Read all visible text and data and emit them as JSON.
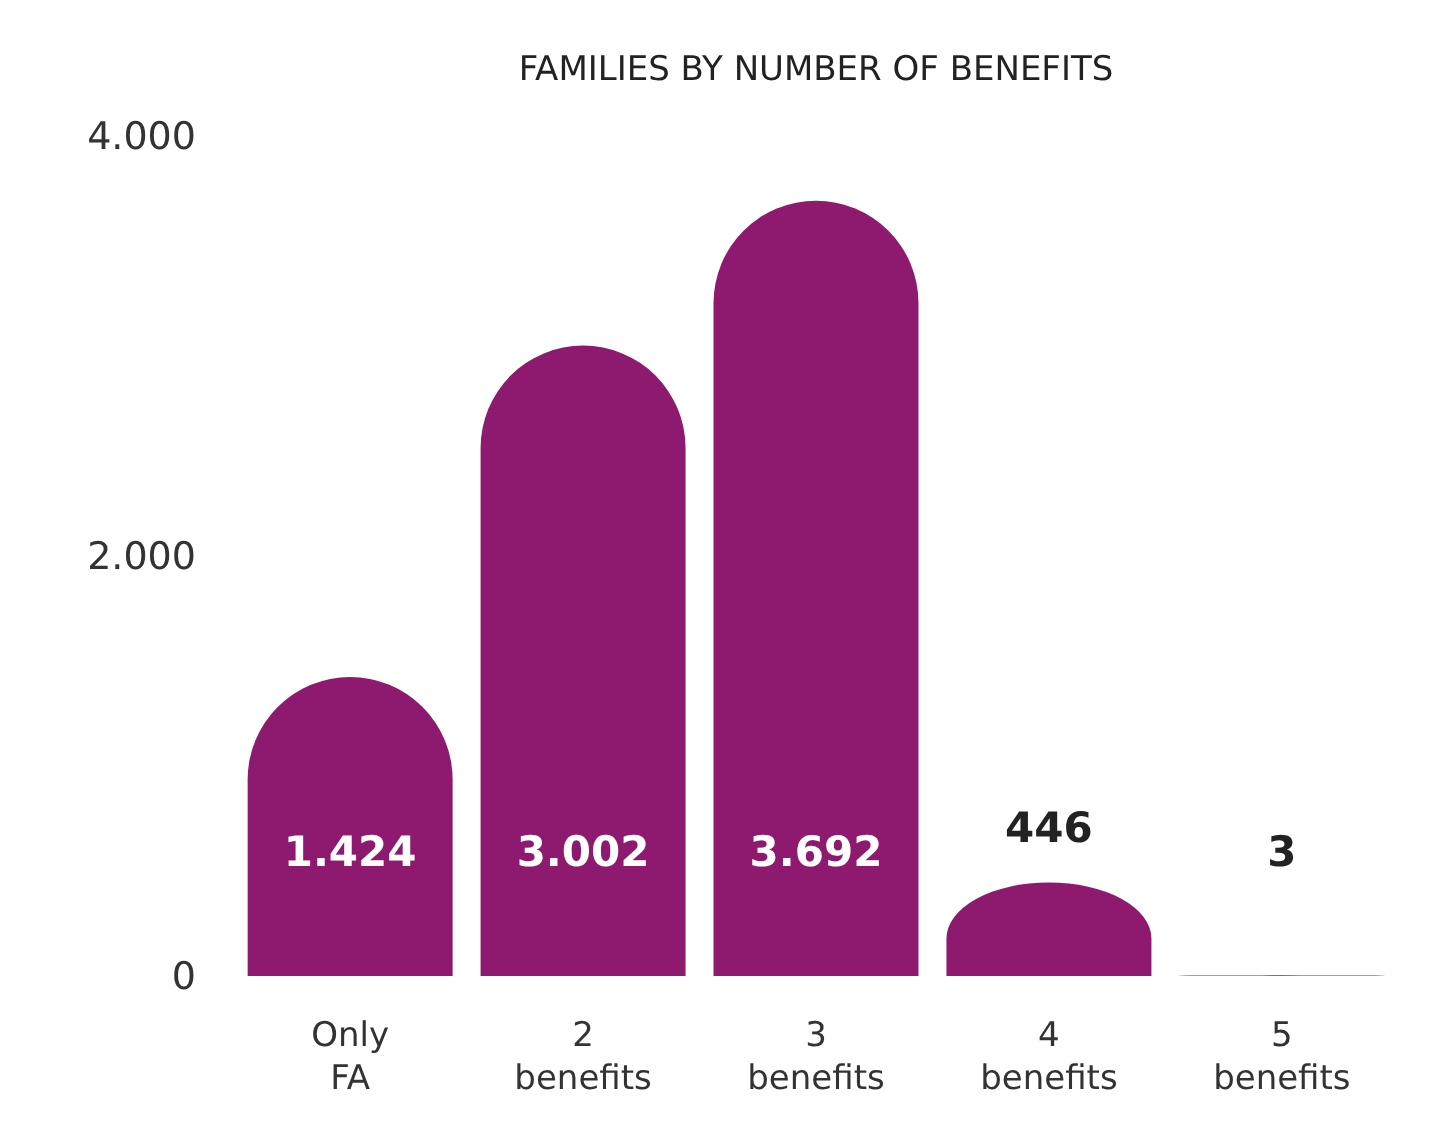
{
  "chart_data": {
    "type": "bar",
    "title": "FAMILIES BY NUMBER OF BENEFITS",
    "categories": [
      "Only FA",
      "2 benefits",
      "3 benefits",
      "4 benefits",
      "5 benefits"
    ],
    "values": [
      1424,
      3002,
      3692,
      446,
      3
    ],
    "value_labels": [
      "1.424",
      "3.002",
      "3.692",
      "446",
      "3"
    ],
    "color": "#8e1a6f",
    "ylim": [
      0,
      4000
    ],
    "yticks": [
      {
        "value": 0,
        "label": "0"
      },
      {
        "value": 2000,
        "label": "2.000"
      },
      {
        "value": 4000,
        "label": "4.000"
      }
    ],
    "grid": false
  }
}
